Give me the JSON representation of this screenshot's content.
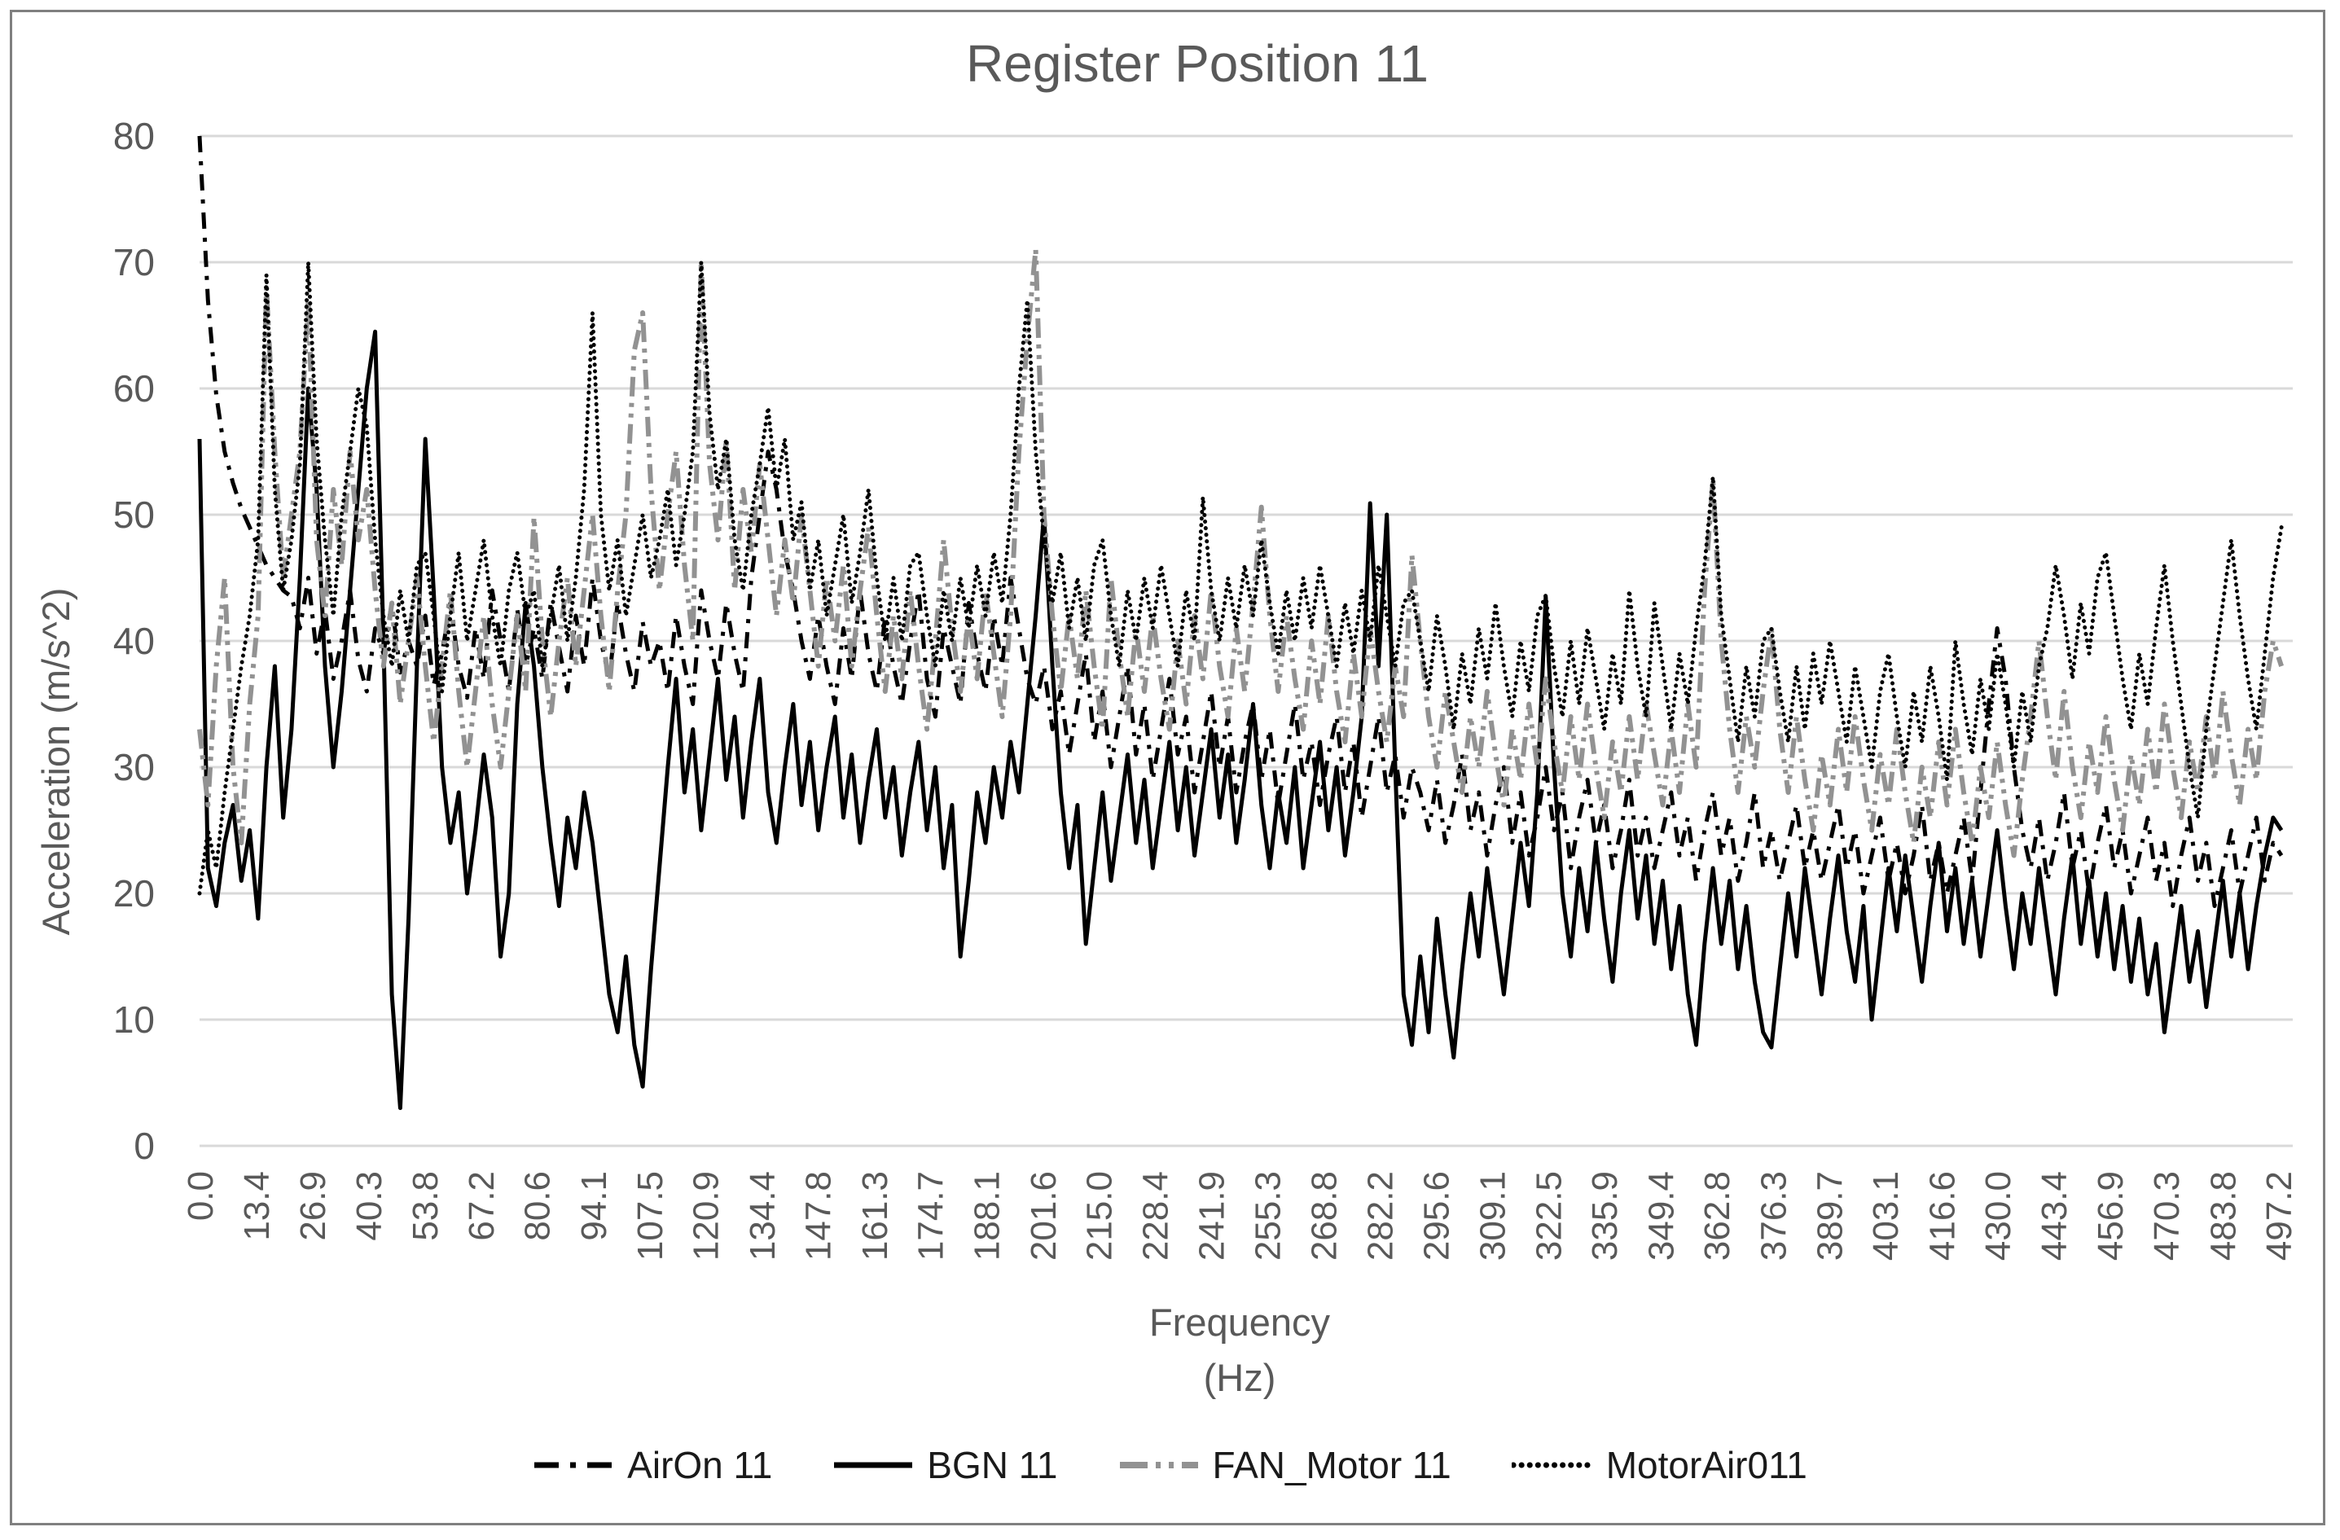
{
  "frame": {
    "border_color": "#808080"
  },
  "chart_data": {
    "type": "line",
    "title": "Register Position 11",
    "xlabel_line1": "Frequency",
    "xlabel_line2": "(Hz)",
    "ylabel": "Acceleration  (m/s^2)",
    "ylim": [
      0,
      80
    ],
    "y_ticks": [
      0,
      10,
      20,
      30,
      40,
      50,
      60,
      70,
      80
    ],
    "x_tick_labels": [
      "0.0",
      "13.4",
      "26.9",
      "40.3",
      "53.8",
      "67.2",
      "80.6",
      "94.1",
      "107.5",
      "120.9",
      "134.4",
      "147.8",
      "161.3",
      "174.7",
      "188.1",
      "201.6",
      "215.0",
      "228.4",
      "241.9",
      "255.3",
      "268.8",
      "282.2",
      "295.6",
      "309.1",
      "322.5",
      "335.9",
      "349.4",
      "362.8",
      "376.3",
      "389.7",
      "403.1",
      "416.6",
      "430.0",
      "443.4",
      "456.9",
      "470.3",
      "483.8",
      "497.2"
    ],
    "x_step_hz": 2,
    "x_axis_max_hz": 500.7,
    "grid": true,
    "grid_color": "#D9D9D9",
    "text_color": "#595959",
    "legend_position": "bottom",
    "series": [
      {
        "name": "AirOn 11",
        "color": "#000000",
        "dash": "20 11 5 11",
        "width": 5,
        "linecap": "butt",
        "legend_dash": "30 14 7 14",
        "values": [
          80,
          67,
          59.5,
          55,
          52.5,
          50.5,
          49,
          47.5,
          46,
          45,
          44,
          43.5,
          41,
          45,
          39,
          42.5,
          37,
          40,
          44,
          38.5,
          36,
          41,
          39,
          43,
          37.5,
          40,
          38,
          42,
          36.5,
          39,
          43,
          38,
          35.5,
          41,
          37,
          44,
          40,
          36,
          42.5,
          38,
          41,
          37,
          43,
          39.5,
          36,
          42,
          38,
          45,
          40,
          37,
          43,
          39,
          36,
          41.5,
          38,
          40,
          36,
          42,
          38,
          35,
          44,
          40,
          37,
          43,
          39,
          36,
          45,
          50,
          55,
          52,
          47,
          44,
          40,
          37,
          42,
          38,
          35,
          41,
          37,
          44,
          39,
          36,
          42,
          38,
          35,
          40,
          44,
          37,
          34,
          41,
          38,
          35,
          43,
          39,
          36,
          42,
          38,
          45,
          41,
          37,
          35,
          38,
          33,
          36,
          31,
          35,
          39,
          32,
          36,
          30,
          34,
          38,
          31,
          35,
          29,
          33,
          37,
          31,
          34,
          28,
          32,
          36,
          30,
          34,
          28,
          32,
          35,
          29,
          33,
          27,
          31,
          35,
          29,
          32,
          27,
          31,
          34,
          28,
          32,
          26,
          30,
          34,
          28,
          31,
          26,
          30,
          28,
          25,
          29,
          24,
          27,
          31,
          25,
          28,
          23,
          27,
          30,
          24,
          28,
          23,
          26,
          30,
          25,
          28,
          22,
          26,
          29,
          24,
          27,
          22,
          25,
          29,
          23,
          26,
          22,
          25,
          28,
          23,
          26,
          21,
          25,
          28,
          23,
          26,
          21,
          24,
          28,
          22,
          25,
          21,
          24,
          27,
          22,
          25,
          21,
          24,
          27,
          22,
          25,
          20,
          23,
          26,
          21,
          24,
          20,
          23,
          27,
          21,
          24,
          20,
          23,
          26,
          21,
          28,
          35,
          41,
          37,
          30,
          25,
          22,
          26,
          21,
          24,
          28,
          22,
          25,
          20,
          24,
          27,
          22,
          25,
          20,
          23,
          26,
          21,
          24,
          19,
          23,
          26,
          21,
          24,
          19,
          22,
          25,
          20,
          23,
          26,
          21,
          24,
          23
        ]
      },
      {
        "name": "BGN 11",
        "color": "#000000",
        "dash": "",
        "width": 5,
        "linecap": "butt",
        "legend_dash": "",
        "values": [
          56,
          22,
          19,
          24,
          27,
          21,
          25,
          18,
          30,
          38,
          26,
          33,
          45,
          60,
          52,
          38,
          30,
          36,
          44,
          52,
          60,
          64.5,
          40,
          12,
          3,
          18,
          38,
          56,
          44,
          30,
          24,
          28,
          20,
          25,
          31,
          26,
          15,
          20,
          35,
          43,
          38,
          30,
          24,
          19,
          26,
          22,
          28,
          24,
          18,
          12,
          9,
          15,
          8,
          4.7,
          14,
          22,
          30,
          37,
          28,
          33,
          25,
          31,
          37,
          29,
          34,
          26,
          32,
          37,
          28,
          24,
          30,
          35,
          27,
          32,
          25,
          30,
          34,
          26,
          31,
          24,
          29,
          33,
          26,
          30,
          23,
          28,
          32,
          25,
          30,
          22,
          27,
          15,
          21,
          28,
          24,
          30,
          26,
          32,
          28,
          35,
          42,
          50,
          38,
          28,
          22,
          27,
          16,
          22,
          28,
          21,
          26,
          31,
          24,
          29,
          22,
          27,
          32,
          25,
          30,
          23,
          28,
          33,
          26,
          31,
          24,
          29,
          35,
          27,
          22,
          28,
          24,
          30,
          22,
          27,
          32,
          25,
          30,
          23,
          28,
          34,
          50.9,
          38,
          50,
          30,
          12,
          8,
          15,
          9,
          18,
          12,
          7,
          14,
          20,
          15,
          22,
          17,
          12,
          18,
          24,
          19,
          28,
          43.5,
          30,
          20,
          15,
          22,
          17,
          24,
          18,
          13,
          20,
          25,
          18,
          23,
          16,
          21,
          14,
          19,
          12,
          8,
          16,
          22,
          16,
          21,
          14,
          19,
          13,
          9,
          7.8,
          14,
          20,
          15,
          22,
          17,
          12,
          18,
          23,
          17,
          13,
          19,
          10,
          16,
          22,
          17,
          23,
          18,
          13,
          19,
          24,
          17,
          22,
          16,
          21,
          15,
          20,
          25,
          19,
          14,
          20,
          16,
          22,
          17,
          12,
          18,
          23,
          16,
          21,
          15,
          20,
          14,
          19,
          13,
          18,
          12,
          16,
          9,
          14,
          19,
          13,
          17,
          11,
          16,
          21,
          15,
          20,
          14,
          19,
          23,
          26,
          25
        ]
      },
      {
        "name": "FAN_Motor 11",
        "color": "#929292",
        "dash": "24 8 5 8 5 8",
        "width": 6,
        "linecap": "butt",
        "legend_dash": "34 10 6 10 6 10",
        "values": [
          33,
          27,
          38,
          45,
          30,
          24,
          35,
          42,
          68,
          55,
          45,
          50,
          55,
          67,
          48,
          42,
          52,
          46,
          55,
          48,
          52,
          44,
          38,
          43,
          35,
          40,
          45,
          38,
          32,
          38,
          44,
          36,
          30,
          36,
          42,
          35,
          30,
          36,
          42,
          36,
          49.8,
          40,
          34,
          40,
          45,
          38,
          44,
          50,
          42,
          36,
          44,
          50,
          63,
          66,
          52,
          44,
          50,
          55,
          46,
          40,
          70,
          54,
          48,
          56,
          44,
          52,
          47,
          54,
          48,
          42,
          48,
          43,
          50,
          44,
          38,
          45,
          40,
          46,
          38,
          44,
          49,
          42,
          36,
          42,
          37,
          44,
          38,
          33,
          40,
          48,
          41,
          36,
          42,
          37,
          44,
          39,
          34,
          42,
          55,
          64,
          71,
          50,
          42,
          36,
          42,
          37,
          44,
          38,
          33,
          45,
          39,
          34,
          41,
          36,
          42,
          37,
          33,
          40,
          35,
          42,
          37,
          44,
          38,
          34,
          41,
          36,
          43,
          50.6,
          42,
          36,
          42,
          37,
          33,
          40,
          35,
          42,
          36,
          32,
          39,
          34,
          41,
          36,
          32,
          38,
          34,
          46.8,
          40,
          34,
          30,
          36,
          32,
          28,
          34,
          30,
          36,
          31,
          27,
          33,
          29,
          35,
          30,
          37,
          32,
          28,
          34,
          29,
          35,
          30,
          26,
          32,
          28,
          34,
          29,
          35,
          31,
          27,
          33,
          28,
          35,
          30,
          44,
          52.8,
          40,
          33,
          28,
          34,
          30,
          36,
          40.9,
          33,
          28,
          34,
          29,
          25,
          31,
          27,
          33,
          28,
          34,
          29,
          25,
          31,
          27,
          33,
          28,
          24,
          30,
          26,
          32,
          27,
          33,
          28,
          24,
          30,
          26,
          32,
          27,
          23,
          29,
          34,
          40,
          34,
          29,
          36,
          30,
          26,
          32,
          28,
          34,
          29,
          25,
          31,
          27,
          33,
          28,
          35,
          30,
          26,
          32,
          28,
          34,
          29,
          36,
          31,
          27,
          33,
          29,
          36,
          40,
          38
        ]
      },
      {
        "name": "MotorAir011",
        "color": "#000000",
        "dash": "0.1 8",
        "width": 5,
        "linecap": "round",
        "legend_dash": "0.1 10",
        "values": [
          20,
          25,
          22,
          28,
          33,
          38,
          42,
          48,
          69,
          52,
          44,
          48,
          54,
          70,
          56,
          48,
          42,
          50,
          55,
          60,
          57,
          48,
          42,
          38,
          44,
          40,
          46,
          47,
          42,
          36,
          42,
          47,
          40,
          44,
          48,
          42,
          38,
          44,
          47,
          42,
          44,
          38,
          42,
          46,
          40,
          45,
          52,
          66,
          50,
          44,
          48,
          42,
          46,
          50,
          45,
          48,
          52,
          46,
          50,
          55,
          70,
          58,
          52,
          56,
          48,
          44,
          50,
          54,
          58.5,
          52,
          56,
          48,
          51,
          44,
          48,
          42,
          46,
          50,
          43,
          47,
          52,
          45,
          40,
          45,
          40,
          46,
          47,
          42,
          38,
          44,
          40,
          45,
          41,
          46,
          42,
          47,
          43,
          50,
          60,
          67,
          55,
          48,
          43,
          47,
          41,
          45,
          40,
          46,
          48,
          42,
          38,
          44,
          40,
          45,
          41,
          46,
          42,
          38,
          44,
          40,
          51.4,
          44,
          40,
          45,
          41,
          46,
          42,
          48,
          43,
          39,
          44,
          40,
          45,
          41,
          46,
          42,
          38,
          43,
          39,
          44,
          40,
          46,
          42,
          38,
          43,
          44,
          40,
          36,
          42,
          38,
          33,
          39,
          35,
          41,
          37,
          43,
          38,
          34,
          40,
          36,
          42,
          43.6,
          38,
          34,
          40,
          35,
          41,
          37,
          33,
          39,
          35,
          44,
          38,
          34,
          43,
          38,
          33,
          39,
          35,
          41,
          46,
          53,
          42,
          37,
          32,
          38,
          34,
          40,
          41,
          36,
          32,
          38,
          33,
          39,
          35,
          40,
          36,
          32,
          38,
          34,
          30,
          36,
          39,
          34,
          30,
          36,
          32,
          38,
          34,
          29,
          40,
          35,
          31,
          37,
          33,
          39,
          35,
          30,
          36,
          32,
          38,
          41,
          46,
          42,
          37,
          43,
          39,
          45,
          47,
          42,
          37,
          33,
          39,
          35,
          41,
          46,
          40,
          35,
          30,
          26,
          33,
          38,
          43,
          48,
          42,
          37,
          33,
          39,
          45,
          49
        ]
      }
    ]
  }
}
